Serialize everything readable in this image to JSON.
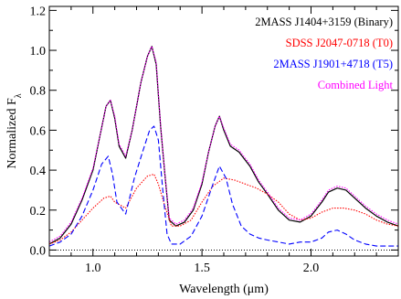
{
  "chart_data": {
    "type": "line",
    "title": "",
    "xlabel": "Wavelength (μm)",
    "ylabel": "Normalized Fλ",
    "xlim": [
      0.8,
      2.4
    ],
    "ylim": [
      -0.03,
      1.22
    ],
    "xticks": [
      1.0,
      1.5,
      2.0
    ],
    "xtick_labels": [
      "1.0",
      "1.5",
      "2.0"
    ],
    "yticks": [
      0.0,
      0.2,
      0.4,
      0.6,
      0.8,
      1.0,
      1.2
    ],
    "ytick_labels": [
      "0.0",
      "0.2",
      "0.4",
      "0.6",
      "0.8",
      "1.0",
      "1.2"
    ],
    "grid": false,
    "legend_position": "top-right",
    "series": [
      {
        "name": "2MASS J1404+3159 (Binary)",
        "color": "#000000",
        "style": "solid",
        "x": [
          0.8,
          0.85,
          0.9,
          0.95,
          1.0,
          1.03,
          1.06,
          1.08,
          1.1,
          1.12,
          1.15,
          1.18,
          1.22,
          1.25,
          1.27,
          1.29,
          1.31,
          1.33,
          1.35,
          1.38,
          1.42,
          1.46,
          1.5,
          1.53,
          1.56,
          1.58,
          1.6,
          1.63,
          1.67,
          1.72,
          1.76,
          1.8,
          1.85,
          1.9,
          1.95,
          2.0,
          2.05,
          2.08,
          2.12,
          2.16,
          2.2,
          2.25,
          2.3,
          2.35,
          2.4
        ],
        "y": [
          0.03,
          0.06,
          0.13,
          0.25,
          0.4,
          0.56,
          0.72,
          0.75,
          0.66,
          0.52,
          0.46,
          0.6,
          0.84,
          0.97,
          1.02,
          0.93,
          0.62,
          0.38,
          0.15,
          0.12,
          0.14,
          0.2,
          0.33,
          0.49,
          0.62,
          0.67,
          0.6,
          0.52,
          0.49,
          0.42,
          0.34,
          0.28,
          0.2,
          0.15,
          0.14,
          0.17,
          0.24,
          0.29,
          0.31,
          0.3,
          0.26,
          0.21,
          0.17,
          0.14,
          0.12
        ]
      },
      {
        "name": "SDSS J2047-0718 (T0)",
        "color": "#ff0000",
        "style": "dotted",
        "x": [
          0.8,
          0.85,
          0.9,
          0.95,
          1.0,
          1.05,
          1.08,
          1.1,
          1.15,
          1.2,
          1.25,
          1.28,
          1.3,
          1.33,
          1.36,
          1.4,
          1.45,
          1.5,
          1.55,
          1.6,
          1.65,
          1.7,
          1.75,
          1.8,
          1.85,
          1.9,
          1.95,
          2.0,
          2.05,
          2.1,
          2.15,
          2.2,
          2.25,
          2.3,
          2.35,
          2.4
        ],
        "y": [
          0.03,
          0.05,
          0.09,
          0.15,
          0.21,
          0.26,
          0.27,
          0.24,
          0.21,
          0.31,
          0.37,
          0.38,
          0.33,
          0.22,
          0.12,
          0.12,
          0.15,
          0.24,
          0.32,
          0.36,
          0.35,
          0.33,
          0.31,
          0.28,
          0.24,
          0.18,
          0.15,
          0.16,
          0.19,
          0.21,
          0.21,
          0.2,
          0.18,
          0.15,
          0.13,
          0.12
        ]
      },
      {
        "name": "2MASS J1901+4718 (T5)",
        "color": "#0000ff",
        "style": "dashed",
        "x": [
          0.8,
          0.85,
          0.9,
          0.95,
          1.0,
          1.04,
          1.07,
          1.09,
          1.11,
          1.15,
          1.19,
          1.23,
          1.26,
          1.28,
          1.3,
          1.32,
          1.34,
          1.36,
          1.4,
          1.45,
          1.5,
          1.55,
          1.58,
          1.61,
          1.64,
          1.68,
          1.72,
          1.76,
          1.8,
          1.85,
          1.9,
          1.95,
          2.0,
          2.05,
          2.08,
          2.12,
          2.16,
          2.2,
          2.25,
          2.3,
          2.35,
          2.4
        ],
        "y": [
          0.02,
          0.04,
          0.08,
          0.17,
          0.3,
          0.43,
          0.47,
          0.38,
          0.24,
          0.18,
          0.36,
          0.5,
          0.6,
          0.62,
          0.55,
          0.3,
          0.08,
          0.03,
          0.03,
          0.07,
          0.17,
          0.33,
          0.42,
          0.36,
          0.23,
          0.12,
          0.08,
          0.06,
          0.05,
          0.04,
          0.03,
          0.04,
          0.04,
          0.06,
          0.09,
          0.1,
          0.08,
          0.05,
          0.03,
          0.02,
          0.02,
          0.02
        ]
      },
      {
        "name": "Combined Light",
        "color": "#ff00ff",
        "style": "dotted",
        "x": [
          0.8,
          0.85,
          0.9,
          0.95,
          1.0,
          1.03,
          1.06,
          1.08,
          1.1,
          1.12,
          1.15,
          1.18,
          1.22,
          1.25,
          1.27,
          1.29,
          1.31,
          1.33,
          1.35,
          1.38,
          1.42,
          1.46,
          1.5,
          1.53,
          1.56,
          1.58,
          1.6,
          1.63,
          1.67,
          1.72,
          1.76,
          1.8,
          1.85,
          1.9,
          1.95,
          2.0,
          2.05,
          2.08,
          2.12,
          2.16,
          2.2,
          2.25,
          2.3,
          2.35,
          2.4
        ],
        "y": [
          0.04,
          0.07,
          0.14,
          0.26,
          0.41,
          0.56,
          0.72,
          0.75,
          0.67,
          0.53,
          0.47,
          0.6,
          0.84,
          0.97,
          1.02,
          0.94,
          0.63,
          0.38,
          0.16,
          0.13,
          0.15,
          0.21,
          0.34,
          0.49,
          0.62,
          0.67,
          0.61,
          0.53,
          0.5,
          0.43,
          0.35,
          0.29,
          0.21,
          0.16,
          0.15,
          0.18,
          0.25,
          0.3,
          0.32,
          0.31,
          0.27,
          0.22,
          0.18,
          0.15,
          0.13
        ]
      }
    ],
    "annotations": [
      {
        "text": "2MASS J1404+3159 (Binary)",
        "color": "#000000"
      },
      {
        "text": "SDSS J2047-0718 (T0)",
        "color": "#ff0000"
      },
      {
        "text": "2MASS J1901+4718 (T5)",
        "color": "#0000ff"
      },
      {
        "text": "Combined Light",
        "color": "#ff00ff"
      }
    ]
  }
}
